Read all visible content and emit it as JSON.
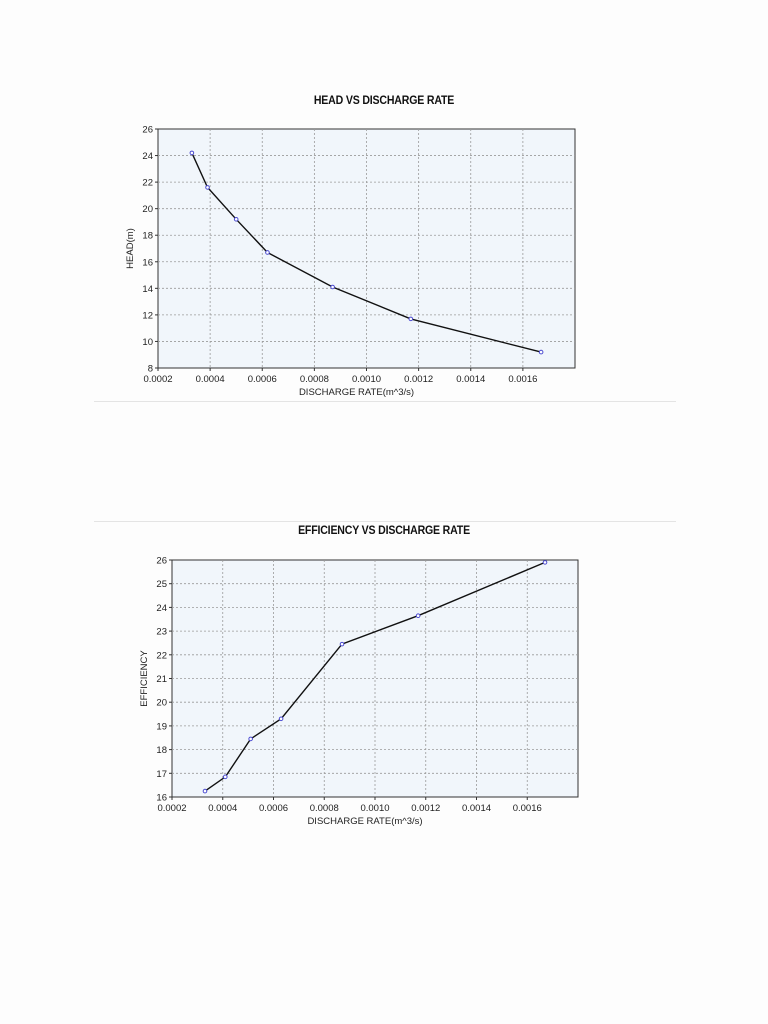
{
  "chart_data": [
    {
      "type": "line",
      "title": "HEAD VS DISCHARGE RATE",
      "xlabel": "DISCHARGE RATE(m^3/s)",
      "ylabel": "HEAD(m)",
      "xlim": [
        0.0002,
        0.0018
      ],
      "ylim": [
        8,
        26
      ],
      "x_ticks": [
        "0.0002",
        "0.0004",
        "0.0006",
        "0.0008",
        "0.0010",
        "0.0012",
        "0.0014",
        "0.0016"
      ],
      "y_ticks": [
        "8",
        "10",
        "12",
        "14",
        "16",
        "18",
        "20",
        "22",
        "24",
        "26"
      ],
      "grid": true,
      "series": [
        {
          "x": [
            0.00033,
            0.00039,
            0.0005,
            0.00062,
            0.00087,
            0.00117,
            0.00167
          ],
          "y": [
            24.2,
            21.6,
            19.2,
            16.7,
            14.1,
            11.7,
            9.2
          ]
        }
      ]
    },
    {
      "type": "line",
      "title": "EFFICIENCY VS DISCHARGE RATE",
      "xlabel": "DISCHARGE RATE(m^3/s)",
      "ylabel": "EFFICIENCY",
      "xlim": [
        0.0002,
        0.0018
      ],
      "ylim": [
        16,
        26
      ],
      "x_ticks": [
        "0.0002",
        "0.0004",
        "0.0006",
        "0.0008",
        "0.0010",
        "0.0012",
        "0.0014",
        "0.0016"
      ],
      "y_ticks": [
        "16",
        "17",
        "18",
        "19",
        "20",
        "21",
        "22",
        "23",
        "24",
        "25",
        "26"
      ],
      "grid": true,
      "series": [
        {
          "x": [
            0.00033,
            0.00041,
            0.00051,
            0.00063,
            0.00087,
            0.00117,
            0.00167
          ],
          "y": [
            16.25,
            16.85,
            18.45,
            19.3,
            22.45,
            23.65,
            25.9
          ]
        }
      ]
    }
  ],
  "colors": {
    "plot_bg": "#f1f6fb",
    "grid": "#9a9a9a",
    "line": "#111111",
    "marker": "#4a4ad0"
  }
}
